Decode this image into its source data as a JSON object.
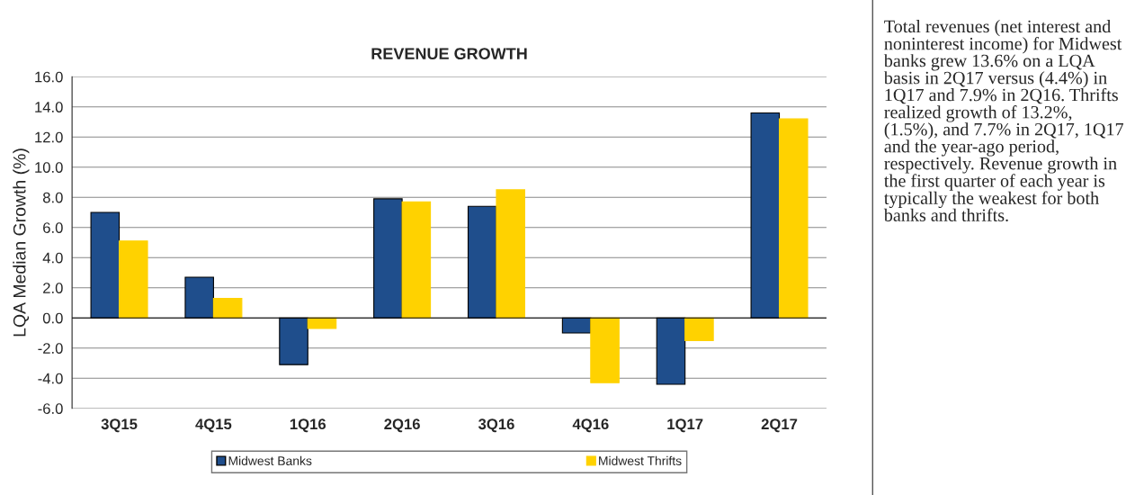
{
  "chart_data": {
    "type": "bar",
    "title": "REVENUE GROWTH",
    "ylabel": "LQA Median Growth (%)",
    "categories": [
      "3Q15",
      "4Q15",
      "1Q16",
      "2Q16",
      "3Q16",
      "4Q16",
      "1Q17",
      "2Q17"
    ],
    "series": [
      {
        "name": "Midwest Banks",
        "color": "#1f4e8c",
        "values": [
          7.0,
          2.7,
          -3.1,
          7.9,
          7.4,
          -1.0,
          -4.4,
          13.6
        ]
      },
      {
        "name": "Midwest Thrifts",
        "color": "#ffd200",
        "values": [
          5.1,
          1.3,
          -0.7,
          7.7,
          8.5,
          -4.3,
          -1.5,
          13.2
        ]
      }
    ],
    "ylim": [
      -6,
      16
    ],
    "yticks": [
      {
        "value": -6,
        "label": "-6.0"
      },
      {
        "value": -4,
        "label": "-4.0"
      },
      {
        "value": -2,
        "label": "-2.0"
      },
      {
        "value": 0,
        "label": "0.0"
      },
      {
        "value": 2,
        "label": "2.0"
      },
      {
        "value": 4,
        "label": "4.0"
      },
      {
        "value": 6,
        "label": "6.0"
      },
      {
        "value": 8,
        "label": "8.0"
      },
      {
        "value": 10,
        "label": "10.0"
      },
      {
        "value": 12,
        "label": "12.0"
      },
      {
        "value": 14,
        "label": "14.0"
      },
      {
        "value": 16,
        "label": "16.0"
      }
    ],
    "grid": "y",
    "legend": "bottom",
    "annotations": [
      "Total revenues (net interest and noninterest income) for Midwest banks grew 13.6% on a LQA basis in 2Q17 versus (4.4%) in 1Q17 and 7.9% in 2Q16. Thrifts realized growth of 13.2%, (1.5%), and 7.7% in 2Q17, 1Q17 and the year-ago period, respectively. Revenue growth in the first quarter of each year is typically the weakest for both banks and thrifts."
    ]
  }
}
